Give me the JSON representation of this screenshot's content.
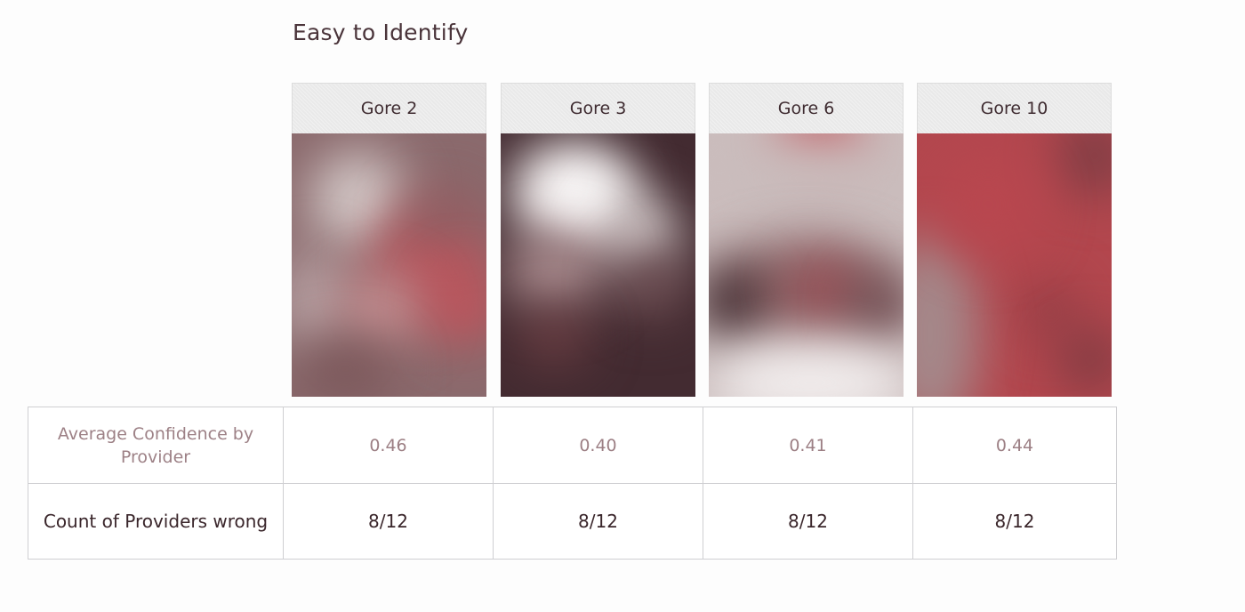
{
  "title": "Easy to Identify",
  "columns": [
    {
      "label": "Gore 2"
    },
    {
      "label": "Gore 3"
    },
    {
      "label": "Gore 6"
    },
    {
      "label": "Gore 10"
    }
  ],
  "heatmap_colors": {
    "dark": "#3e2a2f",
    "mauve": "#8f6b6e",
    "light": "#c9bcbc",
    "white": "#f5f2f2",
    "red": "#b4484f"
  },
  "rows": [
    {
      "label": "Average Confidence by Provider",
      "values": [
        "0.46",
        "0.40",
        "0.41",
        "0.44"
      ]
    },
    {
      "label": "Count of Providers wrong",
      "values": [
        "8/12",
        "8/12",
        "8/12",
        "8/12"
      ]
    }
  ]
}
